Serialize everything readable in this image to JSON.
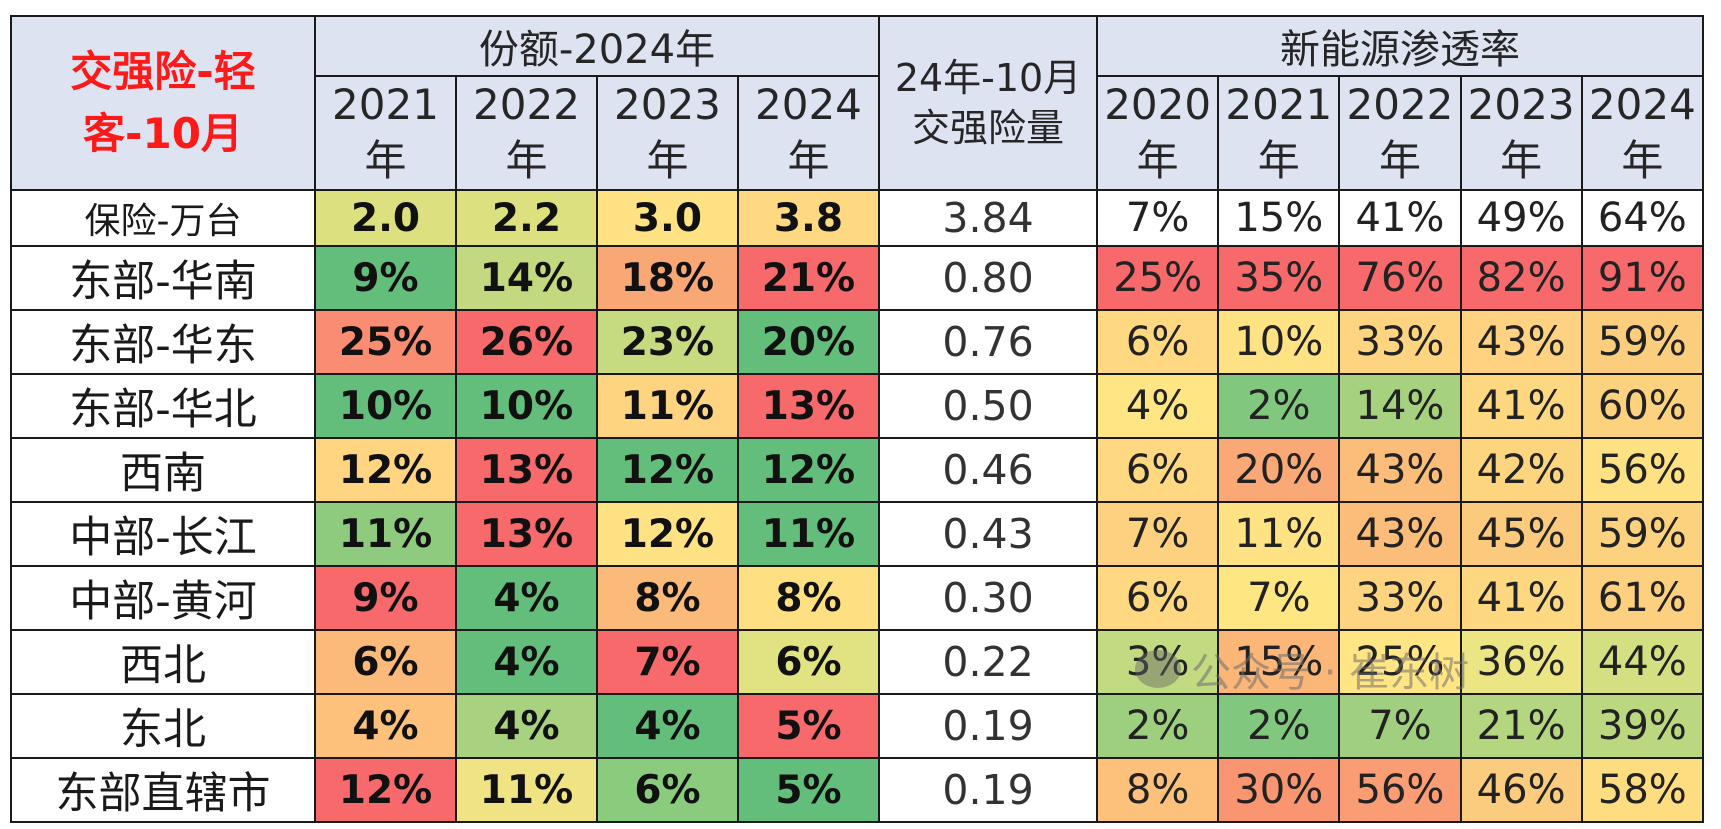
{
  "chart_data": {
    "type": "table",
    "title": "交强险-轻客-10月",
    "groups": {
      "share": "份额-2024年",
      "volume": "24年-10月交强险量",
      "penetration": "新能源渗透率"
    },
    "share_years": [
      "2021年",
      "2022年",
      "2023年",
      "2024年"
    ],
    "pen_years": [
      "2020年",
      "2021年",
      "2022年",
      "2023年",
      "2024年"
    ],
    "rows": [
      {
        "label": "保险-万台",
        "share": [
          "2.0",
          "2.2",
          "3.0",
          "3.8"
        ],
        "volume": "3.84",
        "pen": [
          "7%",
          "15%",
          "41%",
          "49%",
          "64%"
        ]
      },
      {
        "label": "东部-华南",
        "share": [
          "9%",
          "14%",
          "18%",
          "21%"
        ],
        "volume": "0.80",
        "pen": [
          "25%",
          "35%",
          "76%",
          "82%",
          "91%"
        ]
      },
      {
        "label": "东部-华东",
        "share": [
          "25%",
          "26%",
          "23%",
          "20%"
        ],
        "volume": "0.76",
        "pen": [
          "6%",
          "10%",
          "33%",
          "43%",
          "59%"
        ]
      },
      {
        "label": "东部-华北",
        "share": [
          "10%",
          "10%",
          "11%",
          "13%"
        ],
        "volume": "0.50",
        "pen": [
          "4%",
          "2%",
          "14%",
          "41%",
          "60%"
        ]
      },
      {
        "label": "西南",
        "share": [
          "12%",
          "13%",
          "12%",
          "12%"
        ],
        "volume": "0.46",
        "pen": [
          "6%",
          "20%",
          "43%",
          "42%",
          "56%"
        ]
      },
      {
        "label": "中部-长江",
        "share": [
          "11%",
          "13%",
          "12%",
          "11%"
        ],
        "volume": "0.43",
        "pen": [
          "7%",
          "11%",
          "43%",
          "45%",
          "59%"
        ]
      },
      {
        "label": "中部-黄河",
        "share": [
          "9%",
          "4%",
          "8%",
          "8%"
        ],
        "volume": "0.30",
        "pen": [
          "6%",
          "7%",
          "33%",
          "41%",
          "61%"
        ]
      },
      {
        "label": "西北",
        "share": [
          "6%",
          "4%",
          "7%",
          "6%"
        ],
        "volume": "0.22",
        "pen": [
          "3%",
          "15%",
          "25%",
          "36%",
          "44%"
        ]
      },
      {
        "label": "东北",
        "share": [
          "4%",
          "4%",
          "4%",
          "5%"
        ],
        "volume": "0.19",
        "pen": [
          "2%",
          "2%",
          "7%",
          "21%",
          "39%"
        ]
      },
      {
        "label": "东部直辖市",
        "share": [
          "12%",
          "11%",
          "6%",
          "5%"
        ],
        "volume": "0.19",
        "pen": [
          "8%",
          "30%",
          "56%",
          "46%",
          "58%"
        ]
      }
    ],
    "cell_colors": {
      "share": [
        [
          "#dde07f",
          "#dde07f",
          "#fee283",
          "#fed981"
        ],
        [
          "#63be7b",
          "#c3d97f",
          "#f9a774",
          "#f8696b"
        ],
        [
          "#fa8c72",
          "#f8696b",
          "#c6da80",
          "#63be7b"
        ],
        [
          "#63be7b",
          "#63be7b",
          "#fed480",
          "#f8696b"
        ],
        [
          "#ffd581",
          "#f8696b",
          "#63be7b",
          "#63be7b"
        ],
        [
          "#8fcb7e",
          "#f8696b",
          "#ffe284",
          "#63be7b"
        ],
        [
          "#f8696b",
          "#63be7b",
          "#fbba79",
          "#fee082"
        ],
        [
          "#fbba79",
          "#63be7b",
          "#f8696b",
          "#e1e282"
        ],
        [
          "#fdc17c",
          "#a8d27f",
          "#63be7b",
          "#f8696b"
        ],
        [
          "#f8696b",
          "#f0e383",
          "#8acb7e",
          "#63be7b"
        ]
      ],
      "pen": [
        [
          "#ffffff",
          "#ffffff",
          "#ffffff",
          "#ffffff",
          "#ffffff"
        ],
        [
          "#f8696b",
          "#f8696b",
          "#f8696b",
          "#f8696b",
          "#f8696b"
        ],
        [
          "#ffd881",
          "#ffe283",
          "#fed480",
          "#fed280",
          "#fdcd7e"
        ],
        [
          "#ffe584",
          "#81c77d",
          "#a6d27f",
          "#fed880",
          "#fdd27f"
        ],
        [
          "#ffd881",
          "#fba877",
          "#fcbd7b",
          "#fed57f",
          "#fee182"
        ],
        [
          "#fdd17f",
          "#ffe283",
          "#fcbd7b",
          "#fcca7d",
          "#fdd27f"
        ],
        [
          "#ffd881",
          "#fee783",
          "#fed480",
          "#fed880",
          "#fdd07f"
        ],
        [
          "#c2da80",
          "#fbb678",
          "#ffe583",
          "#ece583",
          "#d4df81"
        ],
        [
          "#9dcf7f",
          "#81c77d",
          "#a0d07f",
          "#b4d680",
          "#bbd880"
        ],
        [
          "#fdc17c",
          "#fa9572",
          "#fa9c74",
          "#fbcb7e",
          "#fedd81"
        ]
      ]
    }
  }
}
